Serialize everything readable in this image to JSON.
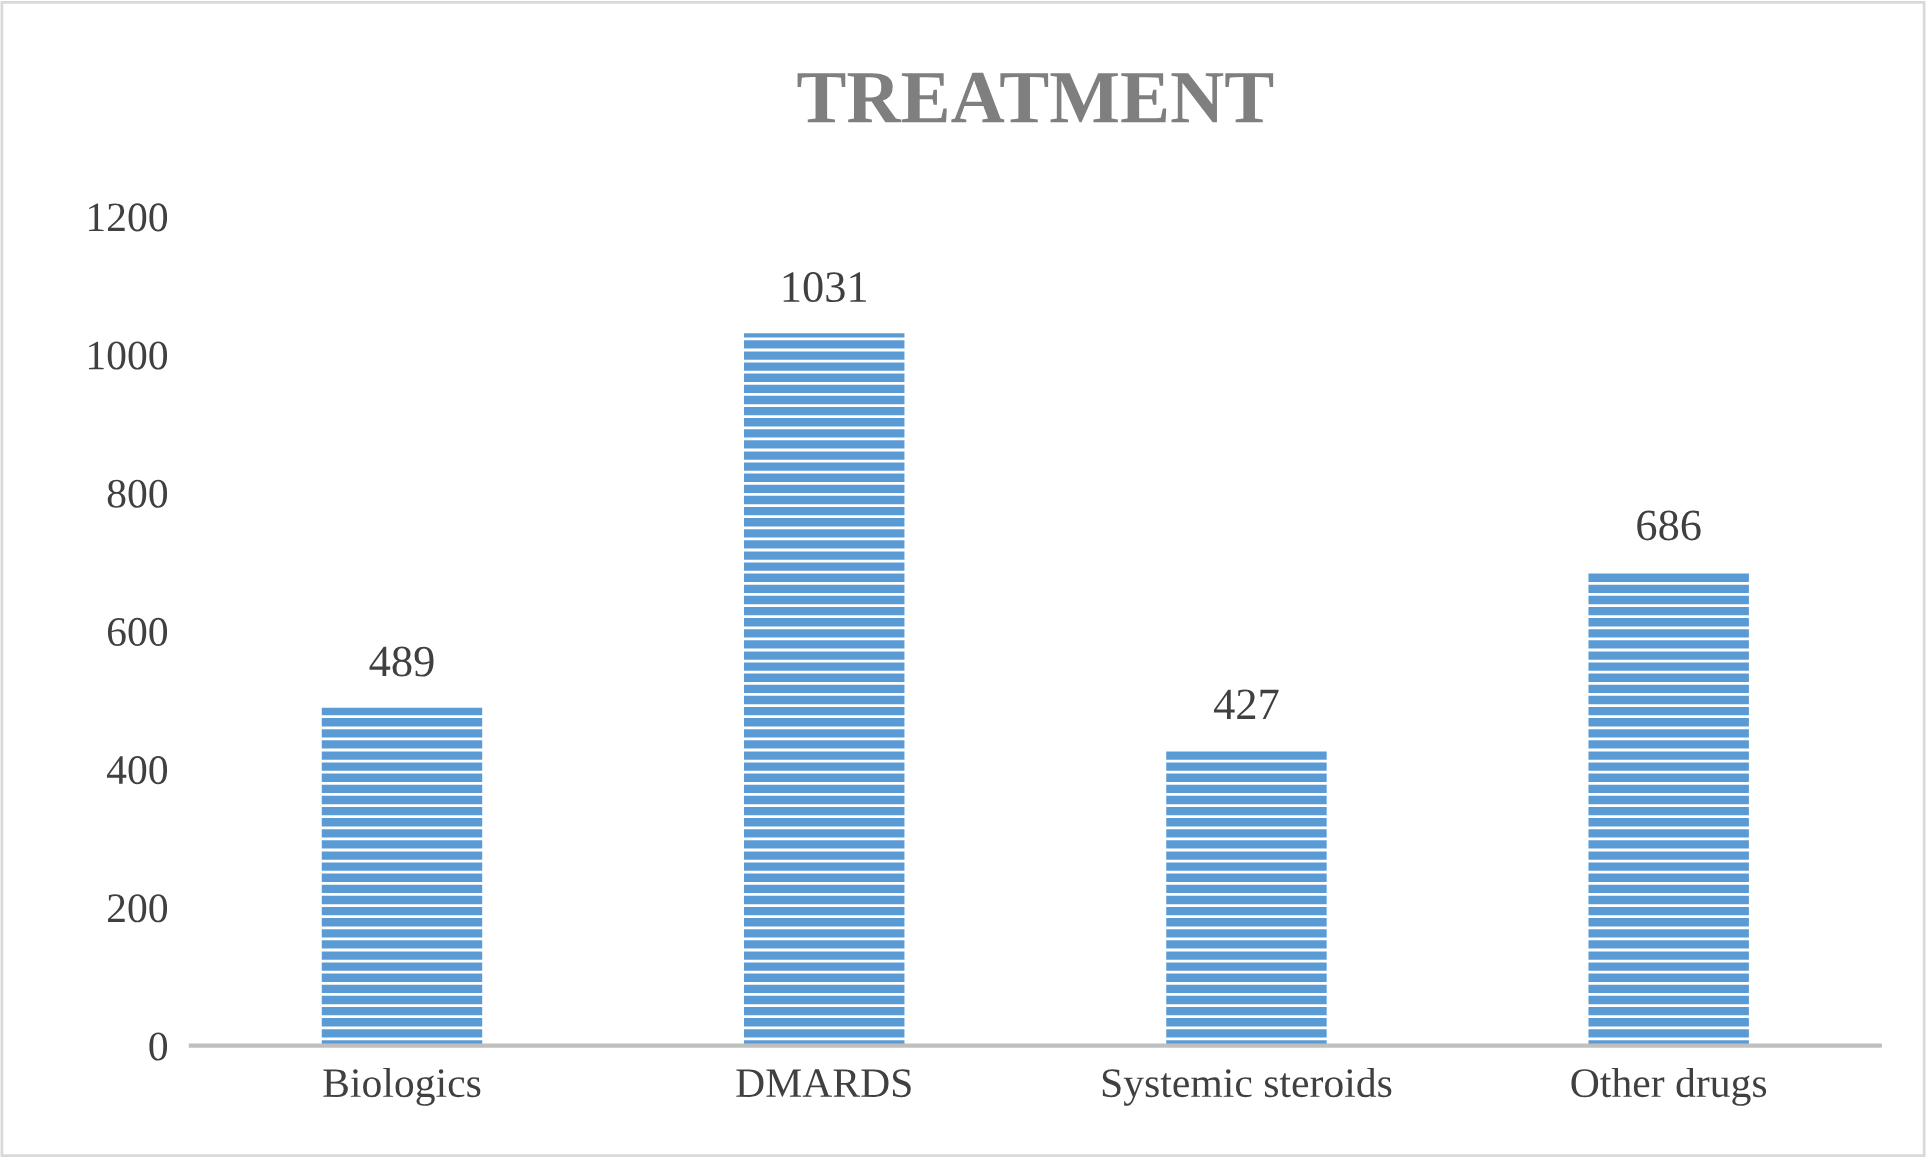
{
  "chart_data": {
    "type": "bar",
    "title": "TREATMENT",
    "categories": [
      "Biologics",
      "DMARDS",
      "Systemic steroids",
      "Other drugs"
    ],
    "values": [
      489,
      1031,
      427,
      686
    ],
    "color": "#5b9bd5",
    "ylim": [
      0,
      1200
    ],
    "yticks": [
      0,
      200,
      400,
      600,
      800,
      1000,
      1200
    ],
    "data_labels": true,
    "grid": false,
    "legend": false
  }
}
